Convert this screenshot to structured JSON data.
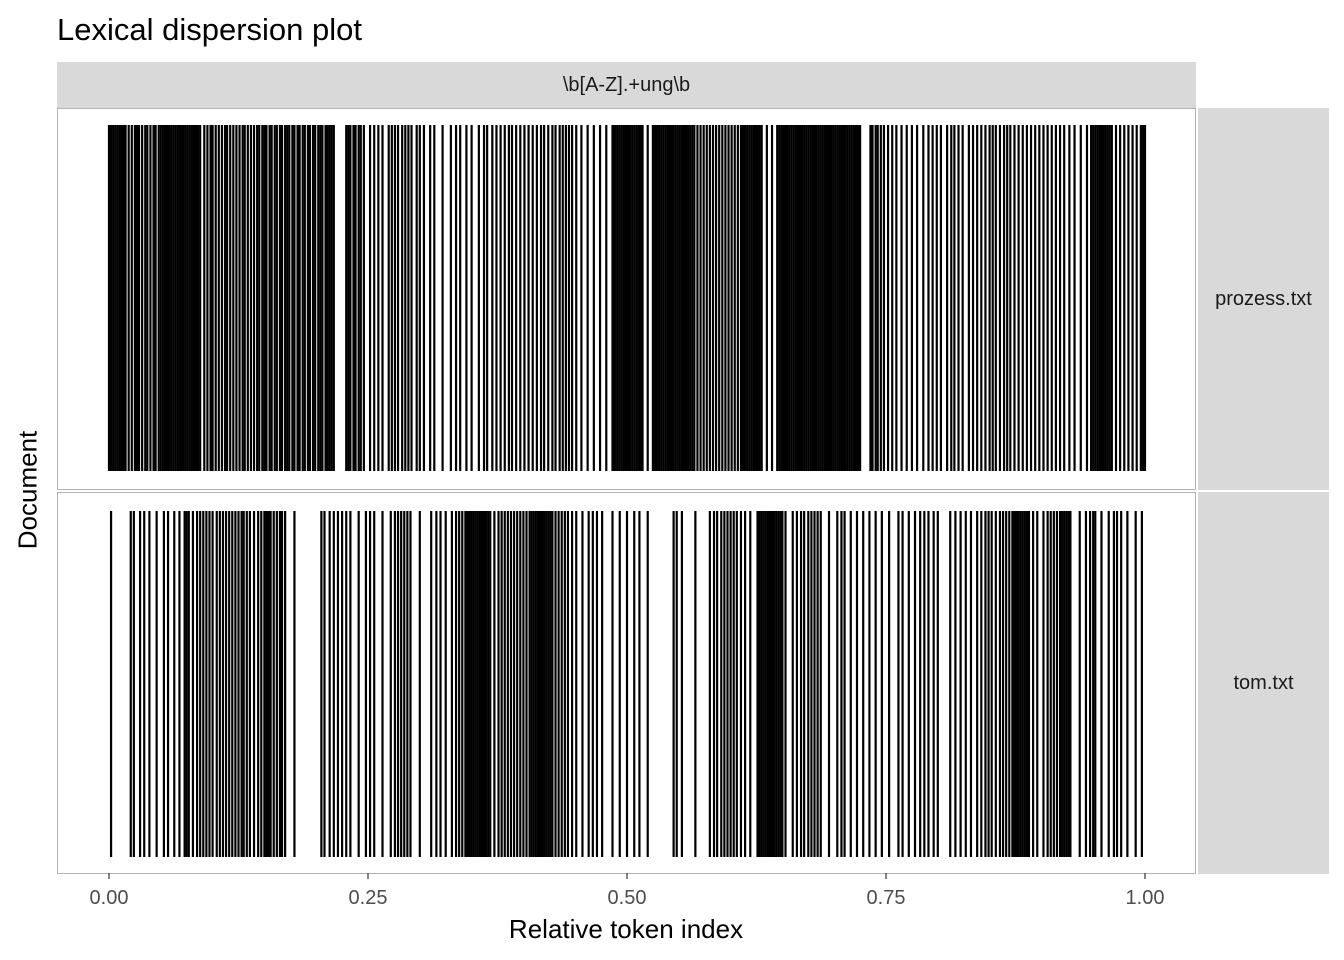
{
  "chart_data": {
    "type": "dispersion",
    "title": "Lexical dispersion plot",
    "facet": "\\b[A-Z].+ung\\b",
    "xlabel": "Relative token index",
    "ylabel": "Document",
    "xlim": [
      0,
      1
    ],
    "x_ticks": [
      "0.00",
      "0.25",
      "0.50",
      "0.75",
      "1.00"
    ],
    "documents": [
      {
        "name": "prozess.txt",
        "positions": [
          0.0,
          0.002,
          0.004,
          0.006,
          0.008,
          0.01,
          0.012,
          0.014,
          0.016,
          0.019,
          0.022,
          0.025,
          0.027,
          0.029,
          0.032,
          0.035,
          0.037,
          0.04,
          0.043,
          0.045,
          0.048,
          0.05,
          0.052,
          0.054,
          0.056,
          0.058,
          0.06,
          0.062,
          0.064,
          0.066,
          0.068,
          0.07,
          0.072,
          0.074,
          0.076,
          0.078,
          0.08,
          0.082,
          0.084,
          0.086,
          0.088,
          0.092,
          0.095,
          0.098,
          0.1,
          0.103,
          0.106,
          0.109,
          0.112,
          0.114,
          0.117,
          0.12,
          0.123,
          0.126,
          0.129,
          0.131,
          0.134,
          0.137,
          0.14,
          0.143,
          0.145,
          0.148,
          0.15,
          0.152,
          0.155,
          0.157,
          0.16,
          0.162,
          0.165,
          0.167,
          0.17,
          0.172,
          0.174,
          0.177,
          0.179,
          0.182,
          0.184,
          0.187,
          0.189,
          0.192,
          0.194,
          0.197,
          0.199,
          0.202,
          0.204,
          0.206,
          0.209,
          0.211,
          0.213,
          0.215,
          0.217,
          0.229,
          0.231,
          0.233,
          0.236,
          0.238,
          0.241,
          0.243,
          0.246,
          0.252,
          0.256,
          0.26,
          0.264,
          0.27,
          0.273,
          0.276,
          0.279,
          0.283,
          0.286,
          0.289,
          0.292,
          0.297,
          0.3,
          0.304,
          0.31,
          0.314,
          0.322,
          0.33,
          0.335,
          0.339,
          0.345,
          0.35,
          0.357,
          0.362,
          0.365,
          0.37,
          0.374,
          0.378,
          0.382,
          0.386,
          0.389,
          0.393,
          0.397,
          0.401,
          0.405,
          0.409,
          0.413,
          0.417,
          0.42,
          0.424,
          0.428,
          0.431,
          0.435,
          0.438,
          0.441,
          0.444,
          0.447,
          0.451,
          0.456,
          0.462,
          0.468,
          0.474,
          0.48,
          0.486,
          0.487,
          0.489,
          0.491,
          0.493,
          0.495,
          0.497,
          0.499,
          0.501,
          0.503,
          0.505,
          0.507,
          0.509,
          0.511,
          0.513,
          0.515,
          0.52,
          0.525,
          0.527,
          0.529,
          0.531,
          0.533,
          0.535,
          0.537,
          0.539,
          0.541,
          0.543,
          0.545,
          0.547,
          0.549,
          0.551,
          0.553,
          0.555,
          0.557,
          0.559,
          0.561,
          0.563,
          0.565,
          0.568,
          0.571,
          0.574,
          0.577,
          0.58,
          0.583,
          0.586,
          0.589,
          0.592,
          0.595,
          0.598,
          0.601,
          0.604,
          0.607,
          0.61,
          0.612,
          0.614,
          0.616,
          0.618,
          0.62,
          0.622,
          0.624,
          0.626,
          0.628,
          0.63,
          0.635,
          0.64,
          0.645,
          0.647,
          0.649,
          0.651,
          0.653,
          0.655,
          0.657,
          0.659,
          0.661,
          0.663,
          0.665,
          0.667,
          0.669,
          0.671,
          0.673,
          0.675,
          0.677,
          0.679,
          0.681,
          0.683,
          0.685,
          0.687,
          0.689,
          0.691,
          0.693,
          0.695,
          0.697,
          0.699,
          0.701,
          0.703,
          0.705,
          0.707,
          0.709,
          0.711,
          0.713,
          0.715,
          0.717,
          0.719,
          0.721,
          0.723,
          0.725,
          0.735,
          0.737,
          0.74,
          0.742,
          0.745,
          0.748,
          0.752,
          0.756,
          0.76,
          0.765,
          0.77,
          0.775,
          0.78,
          0.786,
          0.791,
          0.795,
          0.799,
          0.803,
          0.809,
          0.813,
          0.816,
          0.82,
          0.824,
          0.83,
          0.834,
          0.838,
          0.842,
          0.846,
          0.85,
          0.853,
          0.856,
          0.86,
          0.864,
          0.867,
          0.87,
          0.874,
          0.878,
          0.882,
          0.886,
          0.89,
          0.894,
          0.898,
          0.902,
          0.906,
          0.91,
          0.914,
          0.918,
          0.922,
          0.927,
          0.932,
          0.938,
          0.944,
          0.948,
          0.95,
          0.952,
          0.954,
          0.956,
          0.958,
          0.96,
          0.962,
          0.964,
          0.966,
          0.968,
          0.972,
          0.976,
          0.98,
          0.984,
          0.988,
          0.992,
          0.996,
          0.998,
          1.0
        ]
      },
      {
        "name": "tom.txt",
        "positions": [
          0.002,
          0.021,
          0.024,
          0.03,
          0.034,
          0.039,
          0.046,
          0.053,
          0.057,
          0.063,
          0.068,
          0.073,
          0.075,
          0.077,
          0.081,
          0.085,
          0.088,
          0.091,
          0.094,
          0.097,
          0.1,
          0.104,
          0.107,
          0.11,
          0.113,
          0.116,
          0.119,
          0.122,
          0.125,
          0.128,
          0.13,
          0.133,
          0.136,
          0.14,
          0.144,
          0.147,
          0.15,
          0.152,
          0.154,
          0.156,
          0.159,
          0.162,
          0.165,
          0.167,
          0.17,
          0.179,
          0.205,
          0.208,
          0.213,
          0.217,
          0.221,
          0.225,
          0.229,
          0.233,
          0.241,
          0.248,
          0.252,
          0.256,
          0.264,
          0.272,
          0.276,
          0.279,
          0.282,
          0.285,
          0.288,
          0.291,
          0.3,
          0.311,
          0.316,
          0.32,
          0.325,
          0.331,
          0.335,
          0.338,
          0.341,
          0.344,
          0.346,
          0.348,
          0.35,
          0.352,
          0.354,
          0.356,
          0.358,
          0.36,
          0.362,
          0.364,
          0.366,
          0.368,
          0.372,
          0.376,
          0.379,
          0.382,
          0.385,
          0.388,
          0.391,
          0.394,
          0.397,
          0.4,
          0.403,
          0.406,
          0.408,
          0.41,
          0.412,
          0.414,
          0.416,
          0.418,
          0.42,
          0.422,
          0.424,
          0.426,
          0.428,
          0.431,
          0.434,
          0.437,
          0.44,
          0.443,
          0.447,
          0.451,
          0.457,
          0.463,
          0.467,
          0.471,
          0.476,
          0.486,
          0.493,
          0.5,
          0.507,
          0.512,
          0.52,
          0.545,
          0.548,
          0.553,
          0.566,
          0.58,
          0.584,
          0.587,
          0.591,
          0.594,
          0.597,
          0.6,
          0.603,
          0.606,
          0.61,
          0.614,
          0.619,
          0.626,
          0.628,
          0.63,
          0.632,
          0.634,
          0.636,
          0.638,
          0.64,
          0.642,
          0.644,
          0.646,
          0.648,
          0.65,
          0.653,
          0.66,
          0.664,
          0.668,
          0.671,
          0.675,
          0.678,
          0.681,
          0.684,
          0.687,
          0.695,
          0.703,
          0.707,
          0.71,
          0.716,
          0.722,
          0.728,
          0.734,
          0.74,
          0.746,
          0.753,
          0.762,
          0.766,
          0.772,
          0.778,
          0.783,
          0.787,
          0.791,
          0.796,
          0.8,
          0.812,
          0.817,
          0.822,
          0.827,
          0.832,
          0.838,
          0.842,
          0.846,
          0.849,
          0.852,
          0.856,
          0.86,
          0.863,
          0.866,
          0.869,
          0.872,
          0.874,
          0.876,
          0.878,
          0.88,
          0.882,
          0.884,
          0.886,
          0.888,
          0.892,
          0.896,
          0.902,
          0.906,
          0.909,
          0.912,
          0.915,
          0.918,
          0.92,
          0.922,
          0.924,
          0.926,
          0.928,
          0.937,
          0.943,
          0.947,
          0.95,
          0.952,
          0.958,
          0.965,
          0.97,
          0.973,
          0.977,
          0.983,
          0.991,
          0.997
        ]
      }
    ]
  }
}
